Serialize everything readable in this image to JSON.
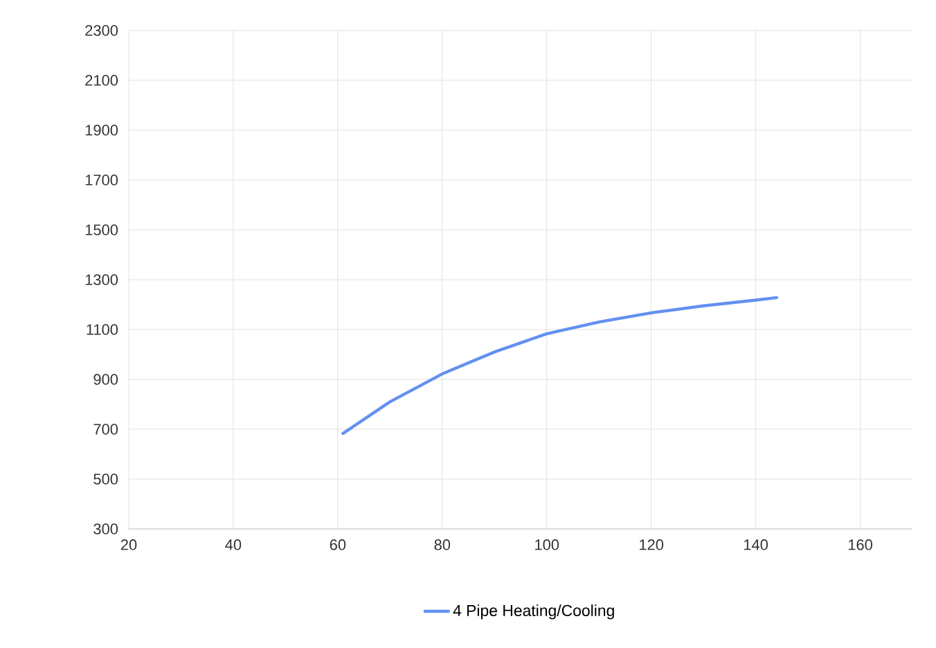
{
  "chart_data": {
    "type": "line",
    "xlim": [
      20,
      170
    ],
    "ylim": [
      300,
      2300
    ],
    "xticks": [
      20,
      40,
      60,
      80,
      100,
      120,
      140,
      160
    ],
    "yticks": [
      300,
      500,
      700,
      900,
      1100,
      1300,
      1500,
      1700,
      1900,
      2100,
      2300
    ],
    "grid": true,
    "legend": "bottom",
    "line_style": "solid",
    "series": [
      {
        "name": "4 Pipe Heating/Cooling",
        "color": "#6390f0",
        "x": [
          61,
          70,
          80,
          90,
          100,
          110,
          120,
          130,
          140,
          144
        ],
        "values": [
          683,
          810,
          922,
          1010,
          1083,
          1130,
          1167,
          1195,
          1218,
          1228
        ]
      }
    ]
  }
}
